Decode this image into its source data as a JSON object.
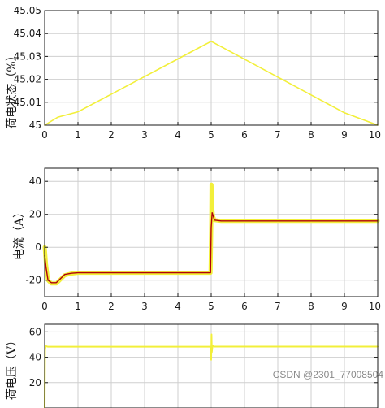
{
  "watermark": "CSDN @2301_77008504",
  "chart_data": [
    {
      "type": "line",
      "ylabel": "荷电状态（%）",
      "xlim": [
        0,
        10
      ],
      "ylim": [
        45,
        45.05
      ],
      "xticks": [
        "0",
        "1",
        "2",
        "3",
        "4",
        "5",
        "6",
        "7",
        "8",
        "9",
        "10"
      ],
      "yticks": [
        "45",
        "45.01",
        "45.02",
        "45.03",
        "45.04",
        "45.05"
      ],
      "grid": true,
      "series": [
        {
          "color": "#f2ef3a",
          "x": [
            0,
            0.4,
            1,
            2,
            3,
            4,
            5,
            6,
            7,
            8,
            9,
            10
          ],
          "y": [
            45.0,
            45.0035,
            45.0058,
            45.0135,
            45.0212,
            45.0289,
            45.0366,
            45.0288,
            45.021,
            45.0132,
            45.0054,
            45.0
          ]
        }
      ]
    },
    {
      "type": "line",
      "ylabel": "电流（A）",
      "xlim": [
        0,
        10
      ],
      "ylim": [
        -30,
        48
      ],
      "xticks": [
        "0",
        "1",
        "2",
        "3",
        "4",
        "5",
        "6",
        "7",
        "8",
        "9",
        "10"
      ],
      "yticks": [
        "-20",
        "0",
        "20",
        "40"
      ],
      "grid": true,
      "series": [
        {
          "color": "#f2ef3a",
          "width": 5,
          "x": [
            0,
            0.04,
            0.1,
            0.2,
            0.35,
            0.45,
            0.6,
            0.8,
            1,
            2,
            3,
            4,
            4.98,
            5,
            5.01,
            5.03,
            5.05,
            5.1,
            5.3,
            6,
            7,
            8,
            9,
            10
          ],
          "y": [
            0,
            -10,
            -20,
            -22,
            -22,
            -20,
            -17,
            -16,
            -15.5,
            -15.5,
            -15.5,
            -15.5,
            -15.5,
            10,
            38,
            25,
            19,
            16.5,
            16,
            16,
            16,
            16,
            16,
            16
          ]
        },
        {
          "color": "#b0000b",
          "width": 1.4,
          "x": [
            0,
            0.04,
            0.1,
            0.2,
            0.35,
            0.45,
            0.6,
            0.8,
            1,
            2,
            3,
            4,
            4.98,
            5,
            5.03,
            5.1,
            5.3,
            6,
            7,
            8,
            9,
            10
          ],
          "y": [
            -5,
            -12,
            -20,
            -21.5,
            -21.5,
            -19.5,
            -16.5,
            -15.8,
            -15.5,
            -15.5,
            -15.5,
            -15.5,
            -15.5,
            12,
            21,
            16.5,
            16,
            16,
            16,
            16,
            16,
            16
          ]
        }
      ]
    },
    {
      "type": "line",
      "ylabel": "荷电压（V）",
      "xlim": [
        0,
        10
      ],
      "ylim": [
        0,
        66
      ],
      "xticks": [],
      "yticks": [
        "20",
        "40",
        "60"
      ],
      "grid": true,
      "series": [
        {
          "color": "#f2ef3a",
          "width": 2,
          "x": [
            0,
            0.01,
            0.03,
            0.06,
            0.1,
            1,
            2,
            3,
            4,
            4.98,
            5,
            5.01,
            5.02,
            5.04,
            5.08,
            6,
            7,
            8,
            9,
            10
          ],
          "y": [
            0,
            45,
            49,
            48.5,
            48.3,
            48.3,
            48.3,
            48.3,
            48.3,
            48.3,
            38,
            58,
            44,
            49,
            48.4,
            48.4,
            48.4,
            48.4,
            48.4,
            48.4
          ]
        }
      ]
    }
  ]
}
